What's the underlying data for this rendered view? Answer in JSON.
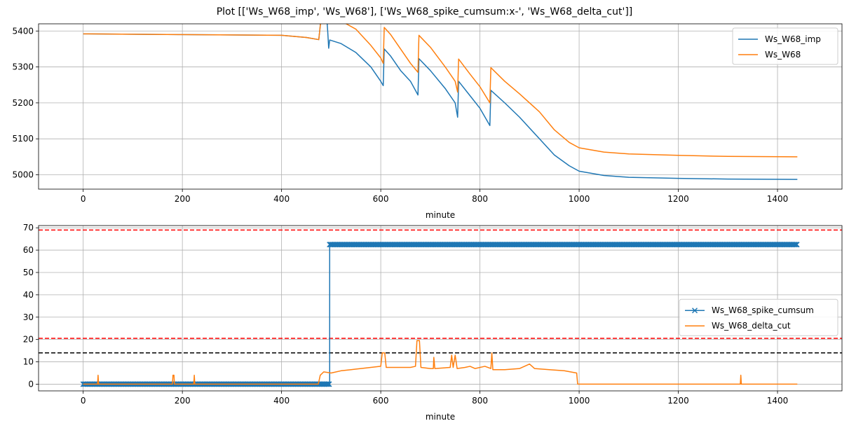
{
  "figure": {
    "title": "Plot [['Ws_W68_imp', 'Ws_W68'], ['Ws_W68_spike_cumsum:x-', 'Ws_W68_delta_cut']]"
  },
  "colors": {
    "blue": "#1f77b4",
    "orange": "#ff7f0e",
    "red_ref": "#ff0000",
    "black_ref": "#000000",
    "grid": "#b0b0b0"
  },
  "chart_data": [
    {
      "type": "line",
      "xlabel": "minute",
      "ylabel": "",
      "xlim": [
        -90,
        1530
      ],
      "ylim": [
        4960,
        5420
      ],
      "xticks": [
        0,
        200,
        400,
        600,
        800,
        1000,
        1200,
        1400
      ],
      "yticks": [
        5000,
        5100,
        5200,
        5300,
        5400
      ],
      "grid": true,
      "legend": "top-right",
      "series": [
        {
          "name": "Ws_W68_imp",
          "color": "#1f77b4",
          "points": [
            [
              0,
              5392
            ],
            [
              100,
              5391
            ],
            [
              200,
              5390
            ],
            [
              300,
              5389
            ],
            [
              400,
              5388
            ],
            [
              450,
              5382
            ],
            [
              475,
              5376
            ],
            [
              480,
              5440
            ],
            [
              490,
              5458
            ],
            [
              493,
              5400
            ],
            [
              495,
              5352
            ],
            [
              497,
              5375
            ],
            [
              520,
              5365
            ],
            [
              550,
              5340
            ],
            [
              580,
              5300
            ],
            [
              600,
              5260
            ],
            [
              605,
              5248
            ],
            [
              607,
              5350
            ],
            [
              620,
              5330
            ],
            [
              640,
              5290
            ],
            [
              660,
              5260
            ],
            [
              675,
              5222
            ],
            [
              677,
              5323
            ],
            [
              700,
              5290
            ],
            [
              730,
              5240
            ],
            [
              750,
              5200
            ],
            [
              755,
              5160
            ],
            [
              757,
              5260
            ],
            [
              780,
              5220
            ],
            [
              800,
              5185
            ],
            [
              820,
              5137
            ],
            [
              822,
              5235
            ],
            [
              850,
              5200
            ],
            [
              880,
              5160
            ],
            [
              920,
              5100
            ],
            [
              950,
              5055
            ],
            [
              980,
              5025
            ],
            [
              1000,
              5010
            ],
            [
              1050,
              4998
            ],
            [
              1100,
              4993
            ],
            [
              1200,
              4990
            ],
            [
              1300,
              4988
            ],
            [
              1440,
              4987
            ]
          ]
        },
        {
          "name": "Ws_W68",
          "color": "#ff7f0e",
          "points": [
            [
              0,
              5392
            ],
            [
              100,
              5391
            ],
            [
              200,
              5390
            ],
            [
              300,
              5389
            ],
            [
              400,
              5388
            ],
            [
              450,
              5382
            ],
            [
              475,
              5376
            ],
            [
              480,
              5440
            ],
            [
              490,
              5462
            ],
            [
              495,
              5440
            ],
            [
              520,
              5428
            ],
            [
              550,
              5405
            ],
            [
              580,
              5360
            ],
            [
              600,
              5325
            ],
            [
              605,
              5310
            ],
            [
              607,
              5410
            ],
            [
              620,
              5390
            ],
            [
              640,
              5350
            ],
            [
              660,
              5310
            ],
            [
              675,
              5285
            ],
            [
              677,
              5388
            ],
            [
              700,
              5355
            ],
            [
              730,
              5300
            ],
            [
              750,
              5260
            ],
            [
              755,
              5230
            ],
            [
              757,
              5322
            ],
            [
              780,
              5280
            ],
            [
              800,
              5245
            ],
            [
              820,
              5200
            ],
            [
              822,
              5298
            ],
            [
              850,
              5260
            ],
            [
              880,
              5225
            ],
            [
              920,
              5175
            ],
            [
              950,
              5125
            ],
            [
              980,
              5090
            ],
            [
              1000,
              5075
            ],
            [
              1050,
              5063
            ],
            [
              1100,
              5058
            ],
            [
              1200,
              5054
            ],
            [
              1300,
              5051
            ],
            [
              1440,
              5050
            ]
          ]
        }
      ]
    },
    {
      "type": "line",
      "xlabel": "minute",
      "ylabel": "",
      "xlim": [
        -90,
        1530
      ],
      "ylim": [
        -3,
        71
      ],
      "xticks": [
        0,
        200,
        400,
        600,
        800,
        1000,
        1200,
        1400
      ],
      "yticks": [
        0,
        10,
        20,
        30,
        40,
        50,
        60,
        70
      ],
      "grid": true,
      "legend": "center-right",
      "reference_lines": [
        {
          "y": 69,
          "style": "dashed",
          "color": "#ff0000"
        },
        {
          "y": 20.5,
          "style": "dashed",
          "color": "#ff0000"
        },
        {
          "y": 14,
          "style": "dashed",
          "color": "#000000"
        }
      ],
      "series": [
        {
          "name": "Ws_W68_spike_cumsum",
          "color": "#1f77b4",
          "marker": "x",
          "points": [
            [
              0,
              0
            ],
            [
              497,
              0
            ],
            [
              497,
              62.5
            ],
            [
              1440,
              62.5
            ]
          ]
        },
        {
          "name": "Ws_W68_delta_cut",
          "color": "#ff7f0e",
          "points": [
            [
              0,
              0
            ],
            [
              29,
              0
            ],
            [
              30,
              4
            ],
            [
              31,
              0
            ],
            [
              180,
              0
            ],
            [
              181,
              4
            ],
            [
              183,
              4
            ],
            [
              184,
              0
            ],
            [
              223,
              0
            ],
            [
              224,
              4
            ],
            [
              225,
              0
            ],
            [
              474,
              0
            ],
            [
              478,
              4
            ],
            [
              485,
              5.5
            ],
            [
              500,
              5
            ],
            [
              520,
              6
            ],
            [
              540,
              6.5
            ],
            [
              560,
              7
            ],
            [
              580,
              7.5
            ],
            [
              600,
              8
            ],
            [
              603,
              14
            ],
            [
              608,
              14
            ],
            [
              611,
              7.5
            ],
            [
              640,
              7.5
            ],
            [
              660,
              7.5
            ],
            [
              670,
              8
            ],
            [
              673,
              19.5
            ],
            [
              678,
              19.5
            ],
            [
              681,
              7.5
            ],
            [
              700,
              7
            ],
            [
              706,
              7
            ],
            [
              707,
              12
            ],
            [
              709,
              7
            ],
            [
              740,
              7.5
            ],
            [
              743,
              13
            ],
            [
              746,
              7.5
            ],
            [
              750,
              13
            ],
            [
              754,
              7
            ],
            [
              770,
              7.5
            ],
            [
              780,
              8
            ],
            [
              790,
              7
            ],
            [
              810,
              8
            ],
            [
              822,
              7
            ],
            [
              824,
              14
            ],
            [
              826,
              6.5
            ],
            [
              850,
              6.5
            ],
            [
              880,
              7
            ],
            [
              900,
              9
            ],
            [
              910,
              7
            ],
            [
              940,
              6.5
            ],
            [
              970,
              6
            ],
            [
              995,
              5
            ],
            [
              997,
              0
            ],
            [
              1325,
              0
            ],
            [
              1326,
              4
            ],
            [
              1327,
              0
            ],
            [
              1440,
              0
            ]
          ]
        }
      ]
    }
  ]
}
